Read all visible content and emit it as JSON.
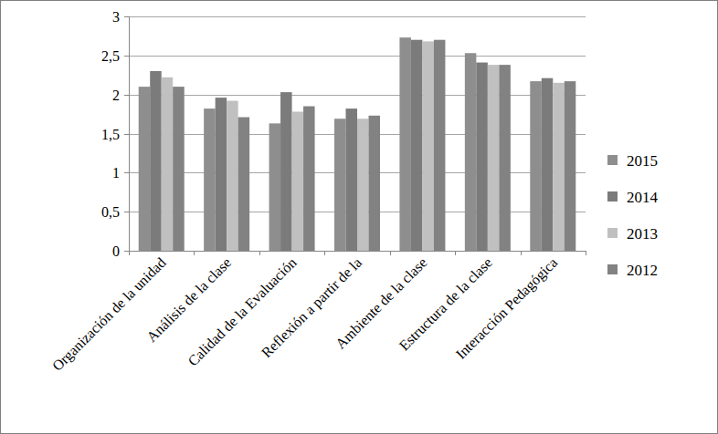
{
  "chart_data": {
    "type": "bar",
    "categories": [
      "Organización de la unidad",
      "Análisis de la clase",
      "Calidad de la Evaluación",
      "Reflexión a partir de la",
      "Ambiente de la clase",
      "Estructura de la clase",
      "Interacción Pedagógica"
    ],
    "series": [
      {
        "name": "2015",
        "color": "#8e8e8e",
        "values": [
          2.1,
          1.82,
          1.63,
          1.69,
          2.73,
          2.53,
          2.17
        ]
      },
      {
        "name": "2014",
        "color": "#7b7b7b",
        "values": [
          2.3,
          1.96,
          2.03,
          1.82,
          2.7,
          2.41,
          2.21
        ]
      },
      {
        "name": "2013",
        "color": "#c0c0c0",
        "values": [
          2.22,
          1.92,
          1.78,
          1.69,
          2.68,
          2.38,
          2.15
        ]
      },
      {
        "name": "2012",
        "color": "#828282",
        "values": [
          2.1,
          1.71,
          1.85,
          1.73,
          2.7,
          2.38,
          2.17
        ]
      }
    ],
    "ylim": [
      0,
      3
    ],
    "yticks": [
      0,
      {
        "value": 0.5,
        "label": "0,5"
      },
      1,
      {
        "value": 1.5,
        "label": "1,5"
      },
      2,
      {
        "value": 2.5,
        "label": "2,5"
      },
      3
    ],
    "grid": true,
    "legend": "right"
  }
}
